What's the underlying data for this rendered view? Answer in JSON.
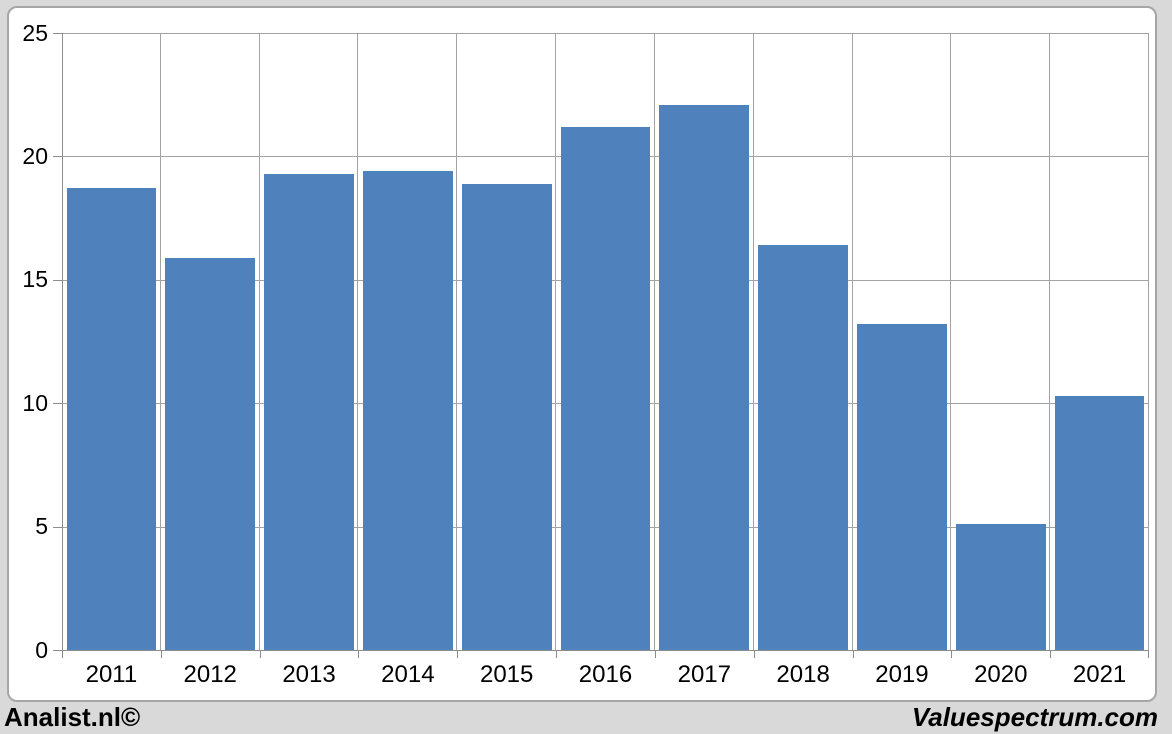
{
  "page": {
    "background_color": "#d9d9d9",
    "chart_background_color": "#ffffff",
    "chart_border_color": "#a6a6a6"
  },
  "chart_data": {
    "type": "bar",
    "title": "",
    "categories": [
      "2011",
      "2012",
      "2013",
      "2014",
      "2015",
      "2016",
      "2017",
      "2018",
      "2019",
      "2020",
      "2021"
    ],
    "values": [
      18.7,
      15.9,
      19.3,
      19.4,
      18.9,
      21.2,
      22.1,
      16.4,
      13.2,
      5.1,
      10.3
    ],
    "xlabel": "",
    "ylabel": "",
    "ylim": [
      0,
      25
    ],
    "yticks": [
      0,
      5,
      10,
      15,
      20,
      25
    ],
    "grid": true,
    "legend": "none",
    "bar_color": "#4f81bd",
    "gridline_color": "#a3a3a3",
    "axis_color": "#8c8c8c",
    "tick_label_color": "#000000"
  },
  "footer": {
    "left_text": "Analist.nl©",
    "right_text": "Valuespectrum.com"
  }
}
